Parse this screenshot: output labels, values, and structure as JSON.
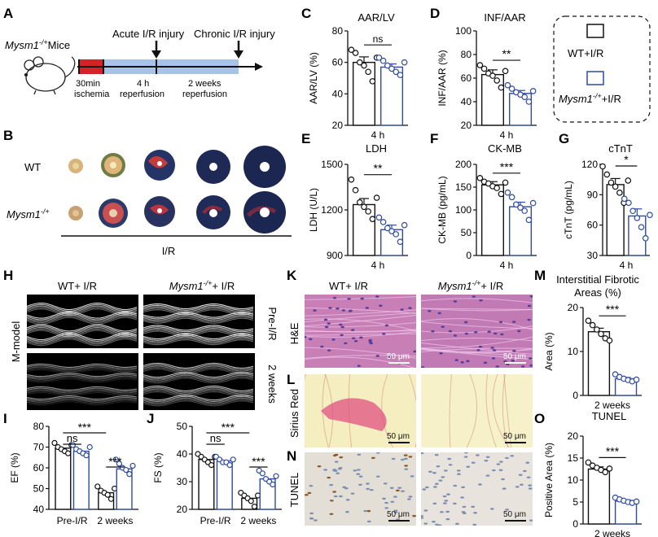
{
  "panels": {
    "A": "A",
    "B": "B",
    "C": "C",
    "D": "D",
    "E": "E",
    "F": "F",
    "G": "G",
    "H": "H",
    "I": "I",
    "J": "J",
    "K": "K",
    "L": "L",
    "M": "M",
    "N": "N",
    "O": "O"
  },
  "panelA": {
    "mouse_label": "Mysm1",
    "mouse_sup": "-/+",
    "mouse_suffix": "Mice",
    "acute_label": "Acute I/R injury",
    "chronic_label": "Chronic I/R injury",
    "ischemia_time": "30min",
    "ischemia_label": "ischemia",
    "reperf_time": "4 h",
    "reperf_label": "reperfusion",
    "weeks_time": "2 weeks",
    "weeks_label": "reperfusion"
  },
  "panelB": {
    "wt_label": "WT",
    "mysm_label": "Mysm1",
    "mysm_sup": "-/+",
    "ir_label": "I/R"
  },
  "legend": {
    "wt": "WT+I/R",
    "mysm": "Mysm1",
    "mysm_sup": "-/+",
    "mysm_suffix": "+I/R"
  },
  "panelH": {
    "col1": "WT+ I/R",
    "col2": "Mysm1",
    "col2_sup": "-/+",
    "col2_suffix": "+ I/R",
    "row_label": "M-model",
    "pre": "Pre-I/R",
    "post": "2 weeks"
  },
  "panelK": {
    "col1": "WT+ I/R",
    "col2": "Mysm1",
    "col2_sup": "-/+",
    "col2_suffix": "+ I/R",
    "row1": "H&E",
    "row2": "Sirius Red",
    "row3": "TUNEL",
    "scale": "50 μm"
  },
  "colors": {
    "wt": "#111111",
    "mysm": "#2e4ba0",
    "he": "#c77fb6",
    "sirius": "#f4eec0",
    "tunel": "#e6e1d9"
  },
  "chart_data": [
    {
      "id": "C",
      "type": "bar",
      "title": "AAR/LV",
      "ylabel": "AAR/LV (%)",
      "xlabel": "4 h",
      "ylim": [
        20,
        80
      ],
      "yticks": [
        20,
        40,
        60,
        80
      ],
      "series": [
        {
          "name": "WT+I/R",
          "value": 60,
          "err": 3.5,
          "points": [
            68,
            66,
            60,
            58,
            54,
            48,
            63
          ]
        },
        {
          "name": "Mysm1-/+ +I/R",
          "value": 57,
          "err": 2,
          "points": [
            63,
            61,
            58,
            56,
            54,
            52,
            60
          ]
        }
      ],
      "sig": "ns"
    },
    {
      "id": "D",
      "type": "bar",
      "title": "INF/AAR",
      "ylabel": "INF/AAR (%)",
      "xlabel": "4 h",
      "ylim": [
        20,
        100
      ],
      "yticks": [
        20,
        40,
        60,
        80,
        100
      ],
      "series": [
        {
          "name": "WT+I/R",
          "value": 63,
          "err": 4,
          "points": [
            71,
            68,
            64,
            62,
            58,
            52,
            66
          ]
        },
        {
          "name": "Mysm1-/+ +I/R",
          "value": 47,
          "err": 2.5,
          "points": [
            54,
            51,
            48,
            46,
            44,
            40,
            49
          ]
        }
      ],
      "sig": "**"
    },
    {
      "id": "E",
      "type": "bar",
      "title": "LDH",
      "ylabel": "LDH (U/L)",
      "xlabel": "4 h",
      "ylim": [
        900,
        1500
      ],
      "yticks": [
        900,
        1200,
        1500
      ],
      "series": [
        {
          "name": "WT+I/R",
          "value": 1235,
          "err": 40,
          "points": [
            1400,
            1330,
            1250,
            1220,
            1190,
            1140,
            1280
          ]
        },
        {
          "name": "Mysm1-/+ +I/R",
          "value": 1070,
          "err": 30,
          "points": [
            1150,
            1120,
            1080,
            1060,
            1040,
            990,
            1100
          ]
        }
      ],
      "sig": "**"
    },
    {
      "id": "F",
      "type": "bar",
      "title": "CK-MB",
      "ylabel": "CK-MB (pg/mL)",
      "xlabel": "4 h",
      "ylim": [
        0,
        200
      ],
      "yticks": [
        0,
        50,
        100,
        150,
        200
      ],
      "series": [
        {
          "name": "WT+I/R",
          "value": 155,
          "err": 7,
          "points": [
            170,
            162,
            158,
            152,
            148,
            135,
            160
          ]
        },
        {
          "name": "Mysm1-/+ +I/R",
          "value": 107,
          "err": 10,
          "points": [
            138,
            128,
            112,
            105,
            98,
            78,
            115
          ]
        }
      ],
      "sig": "***"
    },
    {
      "id": "G",
      "type": "bar",
      "title": "cTnT",
      "ylabel": "cTnT (pg/mL)",
      "xlabel": "4 h",
      "ylim": [
        30,
        120
      ],
      "yticks": [
        30,
        60,
        90,
        120
      ],
      "series": [
        {
          "name": "WT+I/R",
          "value": 100,
          "err": 6,
          "points": [
            118,
            110,
            102,
            98,
            92,
            82,
            104
          ]
        },
        {
          "name": "Mysm1-/+ +I/R",
          "value": 69,
          "err": 7,
          "points": [
            86,
            82,
            74,
            67,
            58,
            47,
            70
          ]
        }
      ],
      "sig": "*"
    },
    {
      "id": "I",
      "type": "bar",
      "ylabel": "EF (%)",
      "ylim": [
        40,
        80
      ],
      "yticks": [
        40,
        50,
        60,
        70,
        80
      ],
      "categories": [
        "Pre-I/R",
        "2 weeks"
      ],
      "series": [
        {
          "name": "WT+I/R",
          "values": [
            69.5,
            48
          ],
          "points": [
            [
              72,
              70,
              69,
              68,
              67,
              71
            ],
            [
              51,
              49,
              48,
              47,
              45,
              50
            ]
          ]
        },
        {
          "name": "Mysm1-/+ +I/R",
          "values": [
            68,
            59.5
          ],
          "points": [
            [
              71,
              69,
              68,
              67,
              66,
              70
            ],
            [
              64,
              62,
              60,
              59,
              57,
              61
            ]
          ]
        }
      ],
      "sig": [
        "ns",
        "***",
        "***"
      ]
    },
    {
      "id": "J",
      "type": "bar",
      "ylabel": "FS (%)",
      "ylim": [
        20,
        50
      ],
      "yticks": [
        20,
        30,
        40,
        50
      ],
      "categories": [
        "Pre-I/R",
        "2 weeks"
      ],
      "series": [
        {
          "name": "WT+I/R",
          "values": [
            38,
            24
          ],
          "points": [
            [
              40,
              39,
              38,
              37,
              36,
              39
            ],
            [
              26,
              25,
              24,
              23,
              21,
              25
            ]
          ]
        },
        {
          "name": "Mysm1-/+ +I/R",
          "values": [
            37.5,
            31
          ],
          "points": [
            [
              39,
              38,
              37,
              37,
              36,
              38
            ],
            [
              34,
              33,
              31,
              30,
              29,
              32
            ]
          ]
        }
      ],
      "sig": [
        "ns",
        "***",
        "***"
      ]
    },
    {
      "id": "M",
      "type": "bar",
      "title": "Interstitial Fibrotic",
      "title2": "Areas (%)",
      "ylabel": "Area (%)",
      "xlabel": "2 weeks",
      "ylim": [
        0,
        20
      ],
      "yticks": [
        0,
        10,
        20
      ],
      "series": [
        {
          "name": "WT+I/R",
          "value": 14.5,
          "err": 0.8,
          "points": [
            17,
            16,
            15,
            14,
            13,
            12.5
          ]
        },
        {
          "name": "Mysm1-/+ +I/R",
          "value": 3.8,
          "err": 0.3,
          "points": [
            4.8,
            4.2,
            3.8,
            3.5,
            3.2,
            3.6
          ]
        }
      ],
      "sig": "***"
    },
    {
      "id": "O",
      "type": "bar",
      "title": "TUNEL",
      "ylabel": "Positive Area (%)",
      "xlabel": "2 weeks",
      "ylim": [
        0,
        20
      ],
      "yticks": [
        0,
        5,
        10,
        15,
        20
      ],
      "series": [
        {
          "name": "WT+I/R",
          "value": 12.5,
          "err": 0.5,
          "points": [
            14,
            13.3,
            12.8,
            12.3,
            11.8,
            12.6
          ]
        },
        {
          "name": "Mysm1-/+ +I/R",
          "value": 5.2,
          "err": 0.3,
          "points": [
            6,
            5.6,
            5.3,
            5,
            4.8,
            5.1
          ]
        }
      ],
      "sig": "***"
    }
  ]
}
